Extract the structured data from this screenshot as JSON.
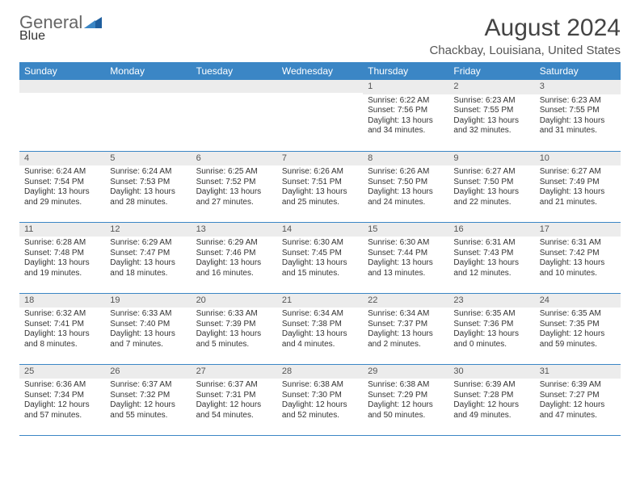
{
  "logo": {
    "word1": "General",
    "word2": "Blue"
  },
  "title": "August 2024",
  "location": "Chackbay, Louisiana, United States",
  "dayHeaders": [
    "Sunday",
    "Monday",
    "Tuesday",
    "Wednesday",
    "Thursday",
    "Friday",
    "Saturday"
  ],
  "colors": {
    "headerBg": "#3b86c5",
    "headerText": "#ffffff",
    "dayNumBg": "#ececec",
    "rowBorder": "#3b86c5",
    "logoAccent": "#3b7abf",
    "pageBg": "#ffffff"
  },
  "typography": {
    "titleFontSize": 30,
    "locationFontSize": 15,
    "headerFontSize": 12,
    "dayNumFontSize": 11,
    "bodyFontSize": 10
  },
  "layout": {
    "columns": 7,
    "rows": 5,
    "cellHeightPx": 88
  },
  "weeks": [
    [
      {
        "day": "",
        "lines": []
      },
      {
        "day": "",
        "lines": []
      },
      {
        "day": "",
        "lines": []
      },
      {
        "day": "",
        "lines": []
      },
      {
        "day": "1",
        "lines": [
          "Sunrise: 6:22 AM",
          "Sunset: 7:56 PM",
          "Daylight: 13 hours",
          "and 34 minutes."
        ]
      },
      {
        "day": "2",
        "lines": [
          "Sunrise: 6:23 AM",
          "Sunset: 7:55 PM",
          "Daylight: 13 hours",
          "and 32 minutes."
        ]
      },
      {
        "day": "3",
        "lines": [
          "Sunrise: 6:23 AM",
          "Sunset: 7:55 PM",
          "Daylight: 13 hours",
          "and 31 minutes."
        ]
      }
    ],
    [
      {
        "day": "4",
        "lines": [
          "Sunrise: 6:24 AM",
          "Sunset: 7:54 PM",
          "Daylight: 13 hours",
          "and 29 minutes."
        ]
      },
      {
        "day": "5",
        "lines": [
          "Sunrise: 6:24 AM",
          "Sunset: 7:53 PM",
          "Daylight: 13 hours",
          "and 28 minutes."
        ]
      },
      {
        "day": "6",
        "lines": [
          "Sunrise: 6:25 AM",
          "Sunset: 7:52 PM",
          "Daylight: 13 hours",
          "and 27 minutes."
        ]
      },
      {
        "day": "7",
        "lines": [
          "Sunrise: 6:26 AM",
          "Sunset: 7:51 PM",
          "Daylight: 13 hours",
          "and 25 minutes."
        ]
      },
      {
        "day": "8",
        "lines": [
          "Sunrise: 6:26 AM",
          "Sunset: 7:50 PM",
          "Daylight: 13 hours",
          "and 24 minutes."
        ]
      },
      {
        "day": "9",
        "lines": [
          "Sunrise: 6:27 AM",
          "Sunset: 7:50 PM",
          "Daylight: 13 hours",
          "and 22 minutes."
        ]
      },
      {
        "day": "10",
        "lines": [
          "Sunrise: 6:27 AM",
          "Sunset: 7:49 PM",
          "Daylight: 13 hours",
          "and 21 minutes."
        ]
      }
    ],
    [
      {
        "day": "11",
        "lines": [
          "Sunrise: 6:28 AM",
          "Sunset: 7:48 PM",
          "Daylight: 13 hours",
          "and 19 minutes."
        ]
      },
      {
        "day": "12",
        "lines": [
          "Sunrise: 6:29 AM",
          "Sunset: 7:47 PM",
          "Daylight: 13 hours",
          "and 18 minutes."
        ]
      },
      {
        "day": "13",
        "lines": [
          "Sunrise: 6:29 AM",
          "Sunset: 7:46 PM",
          "Daylight: 13 hours",
          "and 16 minutes."
        ]
      },
      {
        "day": "14",
        "lines": [
          "Sunrise: 6:30 AM",
          "Sunset: 7:45 PM",
          "Daylight: 13 hours",
          "and 15 minutes."
        ]
      },
      {
        "day": "15",
        "lines": [
          "Sunrise: 6:30 AM",
          "Sunset: 7:44 PM",
          "Daylight: 13 hours",
          "and 13 minutes."
        ]
      },
      {
        "day": "16",
        "lines": [
          "Sunrise: 6:31 AM",
          "Sunset: 7:43 PM",
          "Daylight: 13 hours",
          "and 12 minutes."
        ]
      },
      {
        "day": "17",
        "lines": [
          "Sunrise: 6:31 AM",
          "Sunset: 7:42 PM",
          "Daylight: 13 hours",
          "and 10 minutes."
        ]
      }
    ],
    [
      {
        "day": "18",
        "lines": [
          "Sunrise: 6:32 AM",
          "Sunset: 7:41 PM",
          "Daylight: 13 hours",
          "and 8 minutes."
        ]
      },
      {
        "day": "19",
        "lines": [
          "Sunrise: 6:33 AM",
          "Sunset: 7:40 PM",
          "Daylight: 13 hours",
          "and 7 minutes."
        ]
      },
      {
        "day": "20",
        "lines": [
          "Sunrise: 6:33 AM",
          "Sunset: 7:39 PM",
          "Daylight: 13 hours",
          "and 5 minutes."
        ]
      },
      {
        "day": "21",
        "lines": [
          "Sunrise: 6:34 AM",
          "Sunset: 7:38 PM",
          "Daylight: 13 hours",
          "and 4 minutes."
        ]
      },
      {
        "day": "22",
        "lines": [
          "Sunrise: 6:34 AM",
          "Sunset: 7:37 PM",
          "Daylight: 13 hours",
          "and 2 minutes."
        ]
      },
      {
        "day": "23",
        "lines": [
          "Sunrise: 6:35 AM",
          "Sunset: 7:36 PM",
          "Daylight: 13 hours",
          "and 0 minutes."
        ]
      },
      {
        "day": "24",
        "lines": [
          "Sunrise: 6:35 AM",
          "Sunset: 7:35 PM",
          "Daylight: 12 hours",
          "and 59 minutes."
        ]
      }
    ],
    [
      {
        "day": "25",
        "lines": [
          "Sunrise: 6:36 AM",
          "Sunset: 7:34 PM",
          "Daylight: 12 hours",
          "and 57 minutes."
        ]
      },
      {
        "day": "26",
        "lines": [
          "Sunrise: 6:37 AM",
          "Sunset: 7:32 PM",
          "Daylight: 12 hours",
          "and 55 minutes."
        ]
      },
      {
        "day": "27",
        "lines": [
          "Sunrise: 6:37 AM",
          "Sunset: 7:31 PM",
          "Daylight: 12 hours",
          "and 54 minutes."
        ]
      },
      {
        "day": "28",
        "lines": [
          "Sunrise: 6:38 AM",
          "Sunset: 7:30 PM",
          "Daylight: 12 hours",
          "and 52 minutes."
        ]
      },
      {
        "day": "29",
        "lines": [
          "Sunrise: 6:38 AM",
          "Sunset: 7:29 PM",
          "Daylight: 12 hours",
          "and 50 minutes."
        ]
      },
      {
        "day": "30",
        "lines": [
          "Sunrise: 6:39 AM",
          "Sunset: 7:28 PM",
          "Daylight: 12 hours",
          "and 49 minutes."
        ]
      },
      {
        "day": "31",
        "lines": [
          "Sunrise: 6:39 AM",
          "Sunset: 7:27 PM",
          "Daylight: 12 hours",
          "and 47 minutes."
        ]
      }
    ]
  ]
}
